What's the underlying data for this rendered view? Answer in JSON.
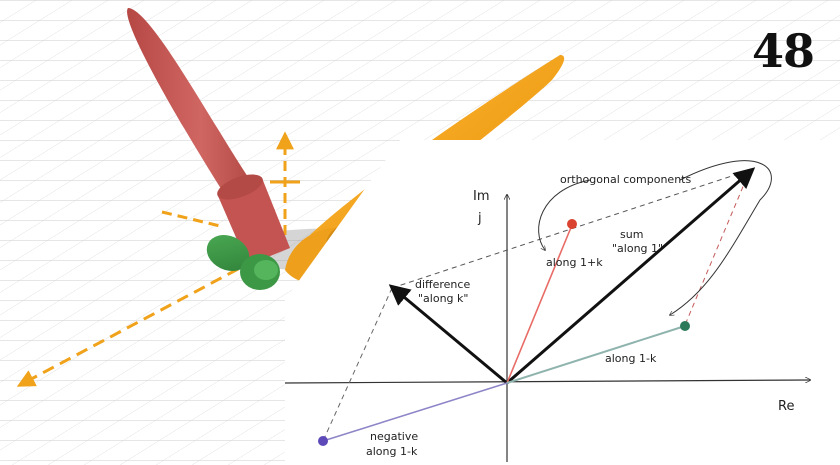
{
  "page_number": "48",
  "colors": {
    "red_lobe": "#c8534f",
    "orange_lobe": "#f0a21a",
    "green_lobe": "#3c9a43",
    "red_point": "#d9432f",
    "green_point": "#2d7a5b",
    "purple_point": "#5d49b8",
    "vector_black": "#111111",
    "red_vector": "#e86b66",
    "teal_vector": "#8fb3ad",
    "purple_vector": "#8d85c7",
    "orange_axis": "#f0a21a"
  },
  "icons": {
    "up_axis": "orange-arrow-icon",
    "front_axis": "orange-arrow-icon"
  },
  "diagram": {
    "axis_im_label": "Im",
    "axis_j_label": "j",
    "axis_re_label": "Re",
    "orthogonal_label": "orthogonal components",
    "sum_label_1": "sum",
    "sum_label_2": "\"along 1\"",
    "difference_label_1": "difference",
    "difference_label_2": "\"along k\"",
    "along_1k_plus": "along 1+k",
    "along_1k_minus": "along 1-k",
    "negative_label_1": "negative",
    "negative_label_2": "along 1-k"
  }
}
